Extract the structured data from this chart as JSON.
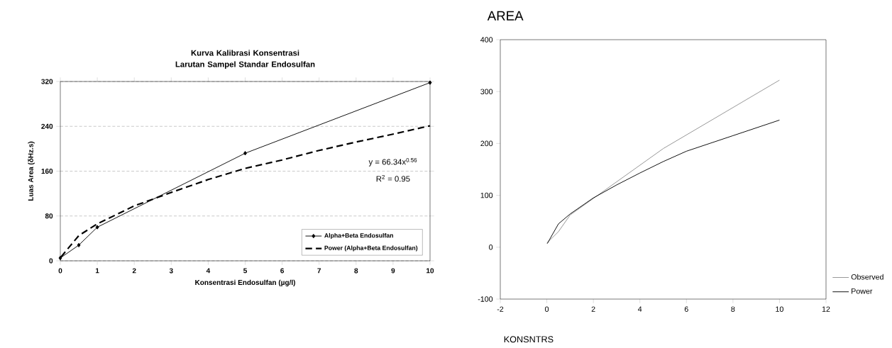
{
  "chart_data": [
    {
      "type": "line",
      "title": "Kurva Kalibrasi Konsentrasi Larutan Sampel Standar Endosulfan",
      "xlabel": "Konsentrasi Endosulfan (µg/l)",
      "ylabel": "Luas Area (δHz.s)",
      "xlim": [
        0,
        10
      ],
      "xticks": [
        0,
        1,
        2,
        3,
        4,
        5,
        6,
        7,
        8,
        9,
        10
      ],
      "ylim": [
        0,
        320
      ],
      "yticks": [
        0,
        80,
        160,
        240,
        320
      ],
      "grid": "y",
      "legend": "bottom right",
      "annotations": [
        "y = 66.34x$^{0.56}$",
        "R$^{2}$ = 0.95"
      ],
      "series": [
        {
          "name": "Alpha+Beta Endosulfan",
          "color": "#000000",
          "marker": "diamond",
          "line_style": "solid",
          "x": [
            0,
            0.5,
            1,
            5,
            10
          ],
          "values": [
            5,
            28,
            60,
            192,
            318
          ]
        },
        {
          "name": "Power (Alpha+Beta Endosulfan)",
          "color": "#000000",
          "line_style": "dashed",
          "x": [
            0.02,
            0.5,
            1,
            2,
            3,
            4,
            5,
            6,
            7,
            8,
            9,
            10
          ],
          "values": [
            7,
            45,
            66,
            98,
            122,
            145,
            165,
            180,
            197,
            212,
            226,
            241
          ]
        }
      ]
    },
    {
      "type": "line",
      "title": "AREA",
      "xlabel": "KONSNTRS",
      "xlim": [
        -2,
        12
      ],
      "xticks": [
        -2,
        0,
        2,
        4,
        6,
        8,
        10,
        12
      ],
      "ylim": [
        -100,
        400
      ],
      "yticks": [
        -100,
        0,
        100,
        200,
        300,
        400
      ],
      "legend": "right",
      "series": [
        {
          "name": "Observed",
          "color": "#909090",
          "line_style": "solid",
          "x": [
            0,
            0.5,
            1,
            5,
            10
          ],
          "values": [
            8,
            30,
            62,
            190,
            322
          ]
        },
        {
          "name": "Power",
          "color": "#000000",
          "line_style": "solid",
          "x": [
            0.02,
            0.5,
            1,
            2,
            3,
            4,
            5,
            6,
            7,
            8,
            10
          ],
          "values": [
            7,
            45,
            64,
            95,
            120,
            143,
            165,
            185,
            200,
            215,
            245
          ]
        }
      ]
    }
  ]
}
